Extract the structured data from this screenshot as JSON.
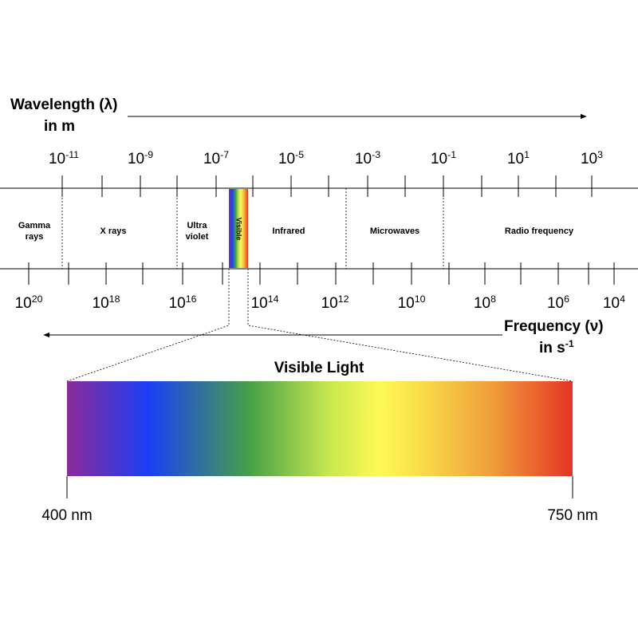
{
  "header": {
    "wavelength_title": "Wavelength (λ)",
    "wavelength_unit": "in m",
    "frequency_title": "Frequency (ν)",
    "frequency_unit": {
      "text": "in s",
      "exp": "-1"
    }
  },
  "wavelength_ticks": [
    {
      "base": "10",
      "exp": "-11"
    },
    {
      "base": "10",
      "exp": "-9"
    },
    {
      "base": "10",
      "exp": "-7"
    },
    {
      "base": "10",
      "exp": "-5"
    },
    {
      "base": "10",
      "exp": "-3"
    },
    {
      "base": "10",
      "exp": "-1"
    },
    {
      "base": "10",
      "exp": "1"
    },
    {
      "base": "10",
      "exp": "3"
    }
  ],
  "frequency_ticks": [
    {
      "base": "10",
      "exp": "20"
    },
    {
      "base": "10",
      "exp": "18"
    },
    {
      "base": "10",
      "exp": "16"
    },
    {
      "base": "10",
      "exp": "14"
    },
    {
      "base": "10",
      "exp": "12"
    },
    {
      "base": "10",
      "exp": "10"
    },
    {
      "base": "10",
      "exp": "8"
    },
    {
      "base": "10",
      "exp": "6"
    },
    {
      "base": "10",
      "exp": "4"
    }
  ],
  "regions": [
    {
      "lines": [
        "Gamma",
        "rays"
      ]
    },
    {
      "lines": [
        "X rays"
      ]
    },
    {
      "lines": [
        "Ultra",
        "violet"
      ]
    },
    {
      "lines": [
        "Visible"
      ]
    },
    {
      "lines": [
        "Infrared"
      ]
    },
    {
      "lines": [
        "Microwaves"
      ]
    },
    {
      "lines": [
        "Radio frequency"
      ]
    }
  ],
  "visible": {
    "title": "Visible Light",
    "start": "400 nm",
    "end": "750 nm"
  }
}
